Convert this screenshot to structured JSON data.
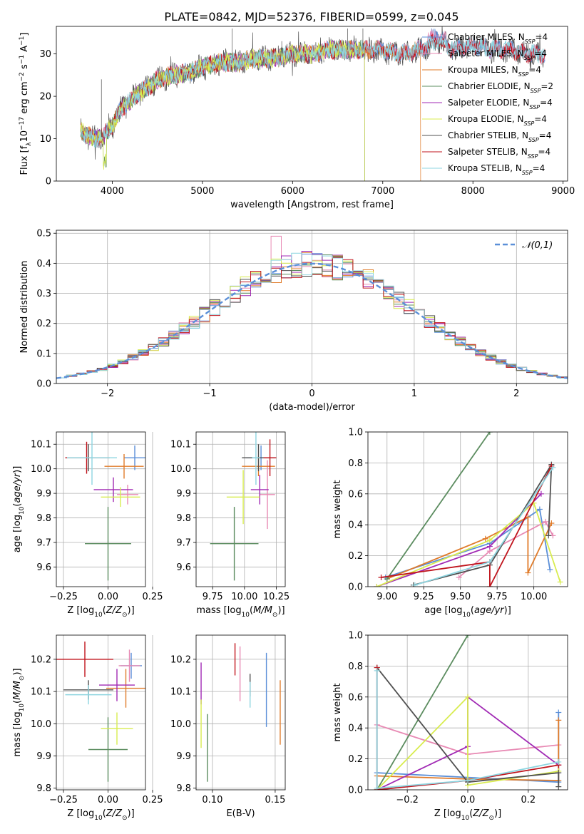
{
  "figure": {
    "title": "PLATE=0842, MJD=52376, FIBERID=0599, z=0.045"
  },
  "palette": {
    "chabrier_miles": "#5b8fd8",
    "salpeter_miles": "#e88ab4",
    "kroupa_miles": "#e07b2a",
    "chabrier_elodie": "#5b8c5f",
    "salpeter_elodie": "#a12ab4",
    "kroupa_elodie": "#d8ec4f",
    "chabrier_stelib": "#505050",
    "salpeter_stelib": "#c0141c",
    "kroupa_stelib": "#8dd5e0",
    "grid": "#b0b0b0"
  },
  "chart_data": [
    {
      "id": "spectrum",
      "type": "line",
      "xlabel": "wavelength [Angstrom, rest frame]",
      "ylabel": "Flux [f",
      "xlim": [
        3380,
        9050
      ],
      "ylim": [
        0,
        36.5
      ],
      "xticks": [
        4000,
        5000,
        6000,
        7000,
        8000,
        9000
      ],
      "yticks": [
        0,
        10,
        20,
        30
      ],
      "grid": false,
      "legend_position": "top-right",
      "continuum": [
        [
          3650,
          12
        ],
        [
          3700,
          11
        ],
        [
          3800,
          10
        ],
        [
          3900,
          10.5
        ],
        [
          4000,
          13
        ],
        [
          4100,
          17
        ],
        [
          4200,
          19
        ],
        [
          4300,
          21
        ],
        [
          4400,
          22
        ],
        [
          4500,
          24
        ],
        [
          4700,
          25
        ],
        [
          4900,
          26
        ],
        [
          5000,
          27
        ],
        [
          5200,
          28
        ],
        [
          5400,
          28
        ],
        [
          5600,
          29
        ],
        [
          5800,
          29
        ],
        [
          6000,
          30
        ],
        [
          6200,
          30
        ],
        [
          6400,
          31
        ],
        [
          6600,
          31
        ],
        [
          6800,
          31
        ],
        [
          7000,
          31
        ],
        [
          7200,
          30
        ],
        [
          7400,
          31
        ],
        [
          7600,
          33
        ],
        [
          7800,
          31
        ],
        [
          8000,
          32
        ],
        [
          8200,
          31
        ],
        [
          8400,
          31
        ],
        [
          8600,
          30
        ],
        [
          8800,
          30
        ]
      ],
      "series": [
        {
          "name": "Chabrier MILES, N",
          "sub": "SSP",
          "suffix": "=4",
          "color": "#5b8fd8",
          "end": 8800
        },
        {
          "name": "Salpeter MILES, N",
          "sub": "SSP",
          "suffix": "=4",
          "color": "#e88ab4",
          "end": 8800
        },
        {
          "name": "Kroupa MILES, N",
          "sub": "SSP",
          "suffix": "=4",
          "color": "#e07b2a",
          "end": 7420
        },
        {
          "name": "Chabrier ELODIE, N",
          "sub": "SSP",
          "suffix": "=2",
          "color": "#5b8c5f",
          "end": 6800
        },
        {
          "name": "Salpeter ELODIE, N",
          "sub": "SSP",
          "suffix": "=4",
          "color": "#a12ab4",
          "end": 6800
        },
        {
          "name": "Kroupa ELODIE, N",
          "sub": "SSP",
          "suffix": "=4",
          "color": "#d8ec4f",
          "end": 6800
        },
        {
          "name": "Chabrier STELIB, N",
          "sub": "SSP",
          "suffix": "=4",
          "color": "#505050",
          "end": 8800
        },
        {
          "name": "Salpeter STELIB, N",
          "sub": "SSP",
          "suffix": "=4",
          "color": "#c0141c",
          "end": 8800
        },
        {
          "name": "Kroupa STELIB, N",
          "sub": "SSP",
          "suffix": "=4",
          "color": "#8dd5e0",
          "end": 8800
        }
      ]
    },
    {
      "id": "residuals",
      "type": "bar",
      "xlabel": "(data-model)/error",
      "ylabel": "Normed distribution",
      "xlim": [
        -2.5,
        2.5
      ],
      "ylim": [
        0,
        0.51
      ],
      "xticks": [
        -2,
        -1,
        0,
        1,
        2
      ],
      "yticks": [
        0.0,
        0.1,
        0.2,
        0.3,
        0.4,
        0.5
      ],
      "grid": true,
      "legend_position": "top-right",
      "legend": [
        "𝒩(0,1)"
      ],
      "bin_edges": [
        -2.5,
        2.5
      ],
      "n_bins": 50,
      "gaussian": {
        "mean": 0,
        "sigma": 1,
        "color": "#5b8fd8"
      }
    },
    {
      "id": "age_vs_z",
      "type": "scatter",
      "xlabel": "Z [log",
      "ylabel": "age  [log",
      "xlim": [
        -0.29,
        0.21
      ],
      "ylim": [
        9.52,
        10.15
      ],
      "xticks": [
        -0.25,
        0.0,
        0.25
      ],
      "yticks": [
        9.6,
        9.7,
        9.8,
        9.9,
        10.0,
        10.1
      ],
      "grid": true,
      "points": [
        {
          "color": "#5b8fd8",
          "x": 0.15,
          "y": 10.045,
          "ex": 0.06,
          "ey": 0.05
        },
        {
          "color": "#e88ab4",
          "x": 0.11,
          "y": 9.895,
          "ex": 0.06,
          "ey": 0.04
        },
        {
          "color": "#e07b2a",
          "x": 0.09,
          "y": 10.01,
          "ex": 0.11,
          "ey": 0.05
        },
        {
          "color": "#5b8c5f",
          "x": 0.0,
          "y": 9.695,
          "ex": 0.13,
          "ey": 0.15
        },
        {
          "color": "#a12ab4",
          "x": 0.03,
          "y": 9.915,
          "ex": 0.11,
          "ey": 0.05
        },
        {
          "color": "#d8ec4f",
          "x": 0.07,
          "y": 9.885,
          "ex": 0.11,
          "ey": 0.04
        },
        {
          "color": "#505050",
          "x": -0.11,
          "y": 10.045,
          "ex": 0.12,
          "ey": 0.055
        },
        {
          "color": "#c0141c",
          "x": -0.12,
          "y": 10.045,
          "ex": 0.12,
          "ey": 0.065
        },
        {
          "color": "#8dd5e0",
          "x": -0.09,
          "y": 10.045,
          "ex": 0.14,
          "ey": 0.11
        }
      ]
    },
    {
      "id": "age_vs_mass",
      "type": "scatter",
      "xlabel": "mass [log",
      "ylabel": "",
      "xlim": [
        9.62,
        10.32
      ],
      "ylim": [
        9.52,
        10.15
      ],
      "xticks": [
        9.75,
        10.0,
        10.25
      ],
      "yticks": [
        9.6,
        9.7,
        9.8,
        9.9,
        10.0,
        10.1
      ],
      "grid": true,
      "points": [
        {
          "color": "#5b8fd8",
          "x": 10.13,
          "y": 10.045,
          "ex": 0.12,
          "ey": 0.05
        },
        {
          "color": "#e88ab4",
          "x": 10.18,
          "y": 9.895,
          "ex": 0.06,
          "ey": 0.14
        },
        {
          "color": "#e07b2a",
          "x": 10.11,
          "y": 10.01,
          "ex": 0.13,
          "ey": 0.04
        },
        {
          "color": "#5b8c5f",
          "x": 9.92,
          "y": 9.695,
          "ex": 0.19,
          "ey": 0.15
        },
        {
          "color": "#a12ab4",
          "x": 10.12,
          "y": 9.915,
          "ex": 0.07,
          "ey": 0.06
        },
        {
          "color": "#d8ec4f",
          "x": 9.99,
          "y": 9.885,
          "ex": 0.13,
          "ey": 0.11
        },
        {
          "color": "#505050",
          "x": 10.11,
          "y": 10.045,
          "ex": 0.13,
          "ey": 0.055
        },
        {
          "color": "#c0141c",
          "x": 10.2,
          "y": 10.045,
          "ex": 0.05,
          "ey": 0.075
        },
        {
          "color": "#8dd5e0",
          "x": 10.09,
          "y": 10.045,
          "ex": 0.03,
          "ey": 0.11
        }
      ]
    },
    {
      "id": "weight_vs_age",
      "type": "line",
      "xlabel": "age  [log",
      "ylabel": "mass weight",
      "xlim": [
        8.87,
        10.23
      ],
      "ylim": [
        0,
        1.0
      ],
      "xticks": [
        9.0,
        9.25,
        9.5,
        9.75,
        10.0
      ],
      "yticks": [
        0.0,
        0.2,
        0.4,
        0.6,
        0.8,
        1.0
      ],
      "grid": true,
      "series": [
        {
          "color": "#5b8fd8",
          "pts": [
            [
              8.99,
              0.06
            ],
            [
              9.7,
              0.28
            ],
            [
              10.04,
              0.5
            ],
            [
              10.11,
              0.11
            ]
          ]
        },
        {
          "color": "#e88ab4",
          "pts": [
            [
              9.49,
              0.06
            ],
            [
              9.7,
              0.23
            ],
            [
              10.08,
              0.42
            ],
            [
              10.13,
              0.33
            ]
          ]
        },
        {
          "color": "#e07b2a",
          "pts": [
            [
              9.0,
              0.05
            ],
            [
              9.67,
              0.31
            ],
            [
              9.96,
              0.45
            ],
            [
              9.96,
              0.09
            ],
            [
              10.12,
              0.41
            ]
          ]
        },
        {
          "color": "#5b8c5f",
          "pts": [
            [
              9.0,
              0.05
            ],
            [
              9.7,
              1.0
            ]
          ]
        },
        {
          "color": "#a12ab4",
          "pts": [
            [
              8.93,
              0.0
            ],
            [
              9.7,
              0.26
            ],
            [
              10.05,
              0.6
            ]
          ]
        },
        {
          "color": "#d8ec4f",
          "pts": [
            [
              8.93,
              0.0
            ],
            [
              9.7,
              0.3
            ],
            [
              10.0,
              0.54
            ],
            [
              10.18,
              0.03
            ]
          ]
        },
        {
          "color": "#505050",
          "pts": [
            [
              9.18,
              0.01
            ],
            [
              9.7,
              0.14
            ],
            [
              10.12,
              0.79
            ],
            [
              10.1,
              0.33
            ]
          ]
        },
        {
          "color": "#c0141c",
          "pts": [
            [
              8.96,
              0.06
            ],
            [
              9.7,
              0.16
            ],
            [
              9.7,
              0.0
            ],
            [
              10.12,
              0.78
            ]
          ]
        },
        {
          "color": "#8dd5e0",
          "pts": [
            [
              9.19,
              0.01
            ],
            [
              9.7,
              0.16
            ],
            [
              10.13,
              0.77
            ]
          ]
        }
      ]
    },
    {
      "id": "mass_vs_z",
      "type": "scatter",
      "xlabel": "Z [log",
      "ylabel": "mass [log",
      "xlim": [
        -0.29,
        0.21
      ],
      "ylim": [
        9.795,
        10.275
      ],
      "xticks": [
        -0.25,
        0.0,
        0.25
      ],
      "yticks": [
        9.8,
        9.9,
        10.0,
        10.1,
        10.2
      ],
      "grid": true,
      "points": [
        {
          "color": "#5b8fd8",
          "x": 0.13,
          "y": 10.18,
          "ex": 0.06,
          "ey": 0.04
        },
        {
          "color": "#e88ab4",
          "x": 0.12,
          "y": 10.18,
          "ex": 0.06,
          "ey": 0.05
        },
        {
          "color": "#e07b2a",
          "x": 0.1,
          "y": 10.11,
          "ex": 0.11,
          "ey": 0.06
        },
        {
          "color": "#5b8c5f",
          "x": 0.0,
          "y": 9.92,
          "ex": 0.11,
          "ey": 0.1
        },
        {
          "color": "#a12ab4",
          "x": 0.05,
          "y": 10.12,
          "ex": 0.1,
          "ey": 0.05
        },
        {
          "color": "#d8ec4f",
          "x": 0.05,
          "y": 9.985,
          "ex": 0.09,
          "ey": 0.05
        },
        {
          "color": "#505050",
          "x": -0.11,
          "y": 10.105,
          "ex": 0.14,
          "ey": 0.03
        },
        {
          "color": "#c0141c",
          "x": -0.13,
          "y": 10.2,
          "ex": 0.16,
          "ey": 0.055
        },
        {
          "color": "#8dd5e0",
          "x": -0.11,
          "y": 10.09,
          "ex": 0.13,
          "ey": 0.03
        }
      ]
    },
    {
      "id": "mass_vs_ebv",
      "type": "scatter",
      "xlabel": "E(B-V)",
      "ylabel": "",
      "xlim": [
        0.087,
        0.158
      ],
      "ylim": [
        9.795,
        10.275
      ],
      "xticks": [
        0.1,
        0.15
      ],
      "yticks": [
        9.8,
        9.9,
        10.0,
        10.1,
        10.2
      ],
      "grid": true,
      "points": [
        {
          "color": "#5b8fd8",
          "x": 0.143,
          "y": 10.105,
          "ex": 0.0,
          "ey": 0.115
        },
        {
          "color": "#e88ab4",
          "x": 0.122,
          "y": 10.155,
          "ex": 0.0,
          "ey": 0.085
        },
        {
          "color": "#e07b2a",
          "x": 0.154,
          "y": 10.035,
          "ex": 0.0,
          "ey": 0.1
        },
        {
          "color": "#5b8c5f",
          "x": 0.096,
          "y": 9.925,
          "ex": 0.0,
          "ey": 0.105
        },
        {
          "color": "#a12ab4",
          "x": 0.091,
          "y": 10.125,
          "ex": 0.0,
          "ey": 0.065
        },
        {
          "color": "#d8ec4f",
          "x": 0.091,
          "y": 10.0,
          "ex": 0.0,
          "ey": 0.075
        },
        {
          "color": "#505050",
          "x": 0.13,
          "y": 10.12,
          "ex": 0.0,
          "ey": 0.035
        },
        {
          "color": "#c0141c",
          "x": 0.118,
          "y": 10.2,
          "ex": 0.0,
          "ey": 0.05
        },
        {
          "color": "#8dd5e0",
          "x": 0.13,
          "y": 10.09,
          "ex": 0.0,
          "ey": 0.04
        }
      ]
    },
    {
      "id": "weight_vs_z",
      "type": "line",
      "xlabel": "Z [log",
      "ylabel": "mass weight",
      "xlim": [
        -0.33,
        0.33
      ],
      "ylim": [
        0,
        1.0
      ],
      "xticks": [
        -0.2,
        0.0,
        0.2
      ],
      "yticks": [
        0.0,
        0.2,
        0.4,
        0.6,
        0.8,
        1.0
      ],
      "grid": true,
      "series": [
        {
          "color": "#5b8fd8",
          "pts": [
            [
              -0.3,
              0.11
            ],
            [
              0.0,
              0.08
            ],
            [
              0.3,
              0.05
            ],
            [
              0.3,
              0.5
            ]
          ]
        },
        {
          "color": "#e88ab4",
          "pts": [
            [
              -0.3,
              0.42
            ],
            [
              0.0,
              0.23
            ],
            [
              0.3,
              0.29
            ]
          ]
        },
        {
          "color": "#e07b2a",
          "pts": [
            [
              -0.3,
              0.09
            ],
            [
              0.0,
              0.07
            ],
            [
              0.3,
              0.06
            ],
            [
              0.3,
              0.45
            ]
          ]
        },
        {
          "color": "#5b8c5f",
          "pts": [
            [
              -0.3,
              0.0
            ],
            [
              0.0,
              1.0
            ]
          ]
        },
        {
          "color": "#a12ab4",
          "pts": [
            [
              -0.3,
              0.0
            ],
            [
              0.0,
              0.28
            ],
            [
              0.0,
              0.6
            ],
            [
              0.3,
              0.16
            ]
          ]
        },
        {
          "color": "#d8ec4f",
          "pts": [
            [
              -0.3,
              0.0
            ],
            [
              0.0,
              0.6
            ],
            [
              0.0,
              0.03
            ],
            [
              0.3,
              0.12
            ]
          ]
        },
        {
          "color": "#505050",
          "pts": [
            [
              -0.3,
              0.79
            ],
            [
              0.0,
              0.05
            ],
            [
              0.3,
              0.11
            ],
            [
              0.3,
              0.02
            ]
          ]
        },
        {
          "color": "#c0141c",
          "pts": [
            [
              -0.3,
              0.79
            ],
            [
              -0.3,
              0.0
            ],
            [
              0.0,
              0.06
            ],
            [
              0.3,
              0.16
            ]
          ]
        },
        {
          "color": "#8dd5e0",
          "pts": [
            [
              -0.3,
              0.77
            ],
            [
              -0.3,
              0.01
            ],
            [
              0.0,
              0.06
            ],
            [
              0.3,
              0.18
            ]
          ]
        }
      ]
    }
  ]
}
